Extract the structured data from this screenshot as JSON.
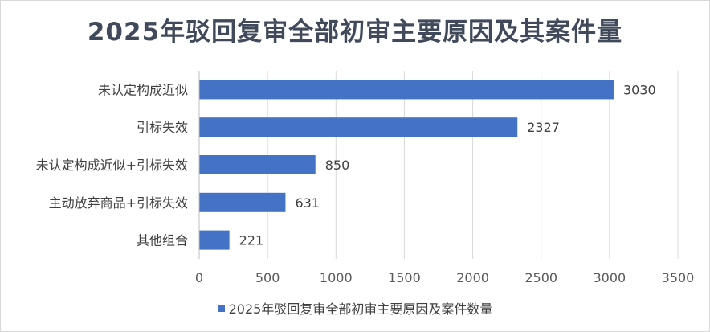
{
  "chart_data": {
    "type": "bar",
    "orientation": "horizontal",
    "title": "2025年驳回复审全部初审主要原因及其案件量",
    "categories": [
      "未认定构成近似",
      "引标失效",
      "未认定构成近似+引标失效",
      "主动放弃商品+引标失效",
      "其他组合"
    ],
    "series": [
      {
        "name": "2025年驳回复审全部初审主要原因及案件数量",
        "values": [
          3030,
          2327,
          850,
          631,
          221
        ],
        "color": "#4472c4"
      }
    ],
    "xlim": [
      0,
      3500
    ],
    "xticks": [
      0,
      500,
      1000,
      1500,
      2000,
      2500,
      3000,
      3500
    ],
    "grid": "vertical",
    "legend": "bottom",
    "data_labels": true
  }
}
